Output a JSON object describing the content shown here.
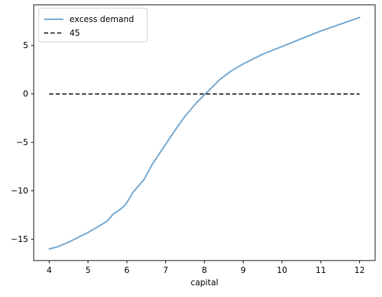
{
  "chart_data": {
    "type": "line",
    "xlabel": "capital",
    "ylabel": "",
    "title": "",
    "xlim": [
      3.6,
      12.4
    ],
    "ylim": [
      -17.2,
      9.2
    ],
    "x_ticks": [
      4,
      5,
      6,
      7,
      8,
      9,
      10,
      11,
      12
    ],
    "y_ticks": [
      -15,
      -10,
      -5,
      0,
      5
    ],
    "y_tick_labels": [
      "−15",
      "−10",
      "−5",
      "0",
      "5"
    ],
    "legend_position": "top-left",
    "grid": false,
    "series": [
      {
        "name": "excess demand",
        "color": "#77aad2",
        "style": "solid",
        "x": [
          4.0,
          4.2,
          4.5,
          4.8,
          5.0,
          5.3,
          5.5,
          5.65,
          5.8,
          5.95,
          6.05,
          6.15,
          6.3,
          6.45,
          6.65,
          6.9,
          7.2,
          7.5,
          7.8,
          8.1,
          8.4,
          8.7,
          9.0,
          9.5,
          10.0,
          10.5,
          11.0,
          11.5,
          12.0
        ],
        "y": [
          -16.0,
          -15.8,
          -15.3,
          -14.7,
          -14.3,
          -13.6,
          -13.1,
          -12.4,
          -12.0,
          -11.5,
          -10.9,
          -10.2,
          -9.5,
          -8.8,
          -7.3,
          -5.8,
          -4.0,
          -2.3,
          -0.9,
          0.3,
          1.5,
          2.4,
          3.1,
          4.1,
          4.9,
          5.7,
          6.5,
          7.2,
          7.9
        ]
      },
      {
        "name": "45",
        "color": "#000000",
        "style": "dashed",
        "x": [
          4.0,
          12.0
        ],
        "y": [
          0.0,
          0.0
        ]
      }
    ]
  }
}
